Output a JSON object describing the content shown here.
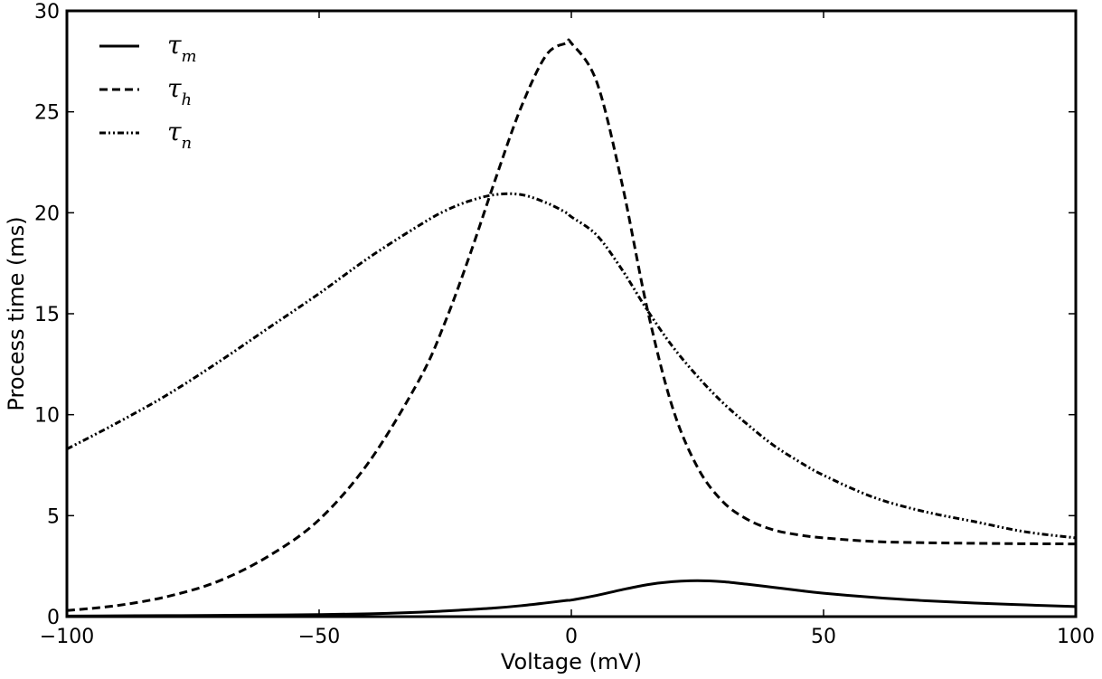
{
  "chart_data": {
    "type": "line",
    "title": "",
    "xlabel": "Voltage (mV)",
    "ylabel": "Process time (ms)",
    "xlim": [
      -100,
      100
    ],
    "ylim": [
      0,
      30
    ],
    "x_ticks": [
      -100,
      -50,
      0,
      50,
      100
    ],
    "x_tick_labels": [
      "−100",
      "−50",
      "0",
      "50",
      "100"
    ],
    "y_ticks": [
      0,
      5,
      10,
      15,
      20,
      25,
      30
    ],
    "y_tick_labels": [
      "0",
      "5",
      "10",
      "15",
      "20",
      "25",
      "30"
    ],
    "grid": false,
    "legend_position": "top-left",
    "x": [
      -100,
      -90,
      -80,
      -70,
      -60,
      -50,
      -40,
      -30,
      -25,
      -20,
      -15,
      -10,
      -5,
      -1,
      0,
      5,
      10,
      15,
      20,
      25,
      30,
      35,
      40,
      45,
      50,
      60,
      70,
      80,
      90,
      100
    ],
    "series": [
      {
        "name": "τm",
        "symbol": "τ",
        "subscript": "m",
        "style": "solid",
        "color": "#000000",
        "values": [
          0.03,
          0.04,
          0.05,
          0.06,
          0.08,
          0.1,
          0.14,
          0.22,
          0.28,
          0.35,
          0.43,
          0.54,
          0.68,
          0.8,
          0.82,
          1.05,
          1.33,
          1.58,
          1.73,
          1.78,
          1.73,
          1.6,
          1.45,
          1.3,
          1.16,
          0.95,
          0.79,
          0.67,
          0.58,
          0.5
        ]
      },
      {
        "name": "τh",
        "symbol": "τ",
        "subscript": "h",
        "style": "dashed",
        "color": "#000000",
        "values": [
          0.3,
          0.55,
          1.0,
          1.75,
          3.0,
          4.8,
          7.7,
          11.8,
          14.6,
          18.0,
          21.7,
          25.2,
          27.8,
          28.4,
          28.4,
          26.5,
          21.5,
          15.3,
          10.4,
          7.4,
          5.7,
          4.8,
          4.3,
          4.05,
          3.9,
          3.72,
          3.66,
          3.63,
          3.61,
          3.6
        ]
      },
      {
        "name": "τn",
        "symbol": "τ",
        "subscript": "n",
        "style": "dash-dot-dot",
        "color": "#000000",
        "values": [
          8.3,
          9.6,
          11.0,
          12.6,
          14.3,
          16.0,
          17.8,
          19.4,
          20.1,
          20.6,
          20.9,
          20.9,
          20.5,
          20.0,
          19.8,
          18.9,
          17.2,
          15.2,
          13.4,
          11.9,
          10.6,
          9.5,
          8.5,
          7.7,
          7.0,
          5.9,
          5.2,
          4.7,
          4.2,
          3.9
        ]
      }
    ]
  }
}
